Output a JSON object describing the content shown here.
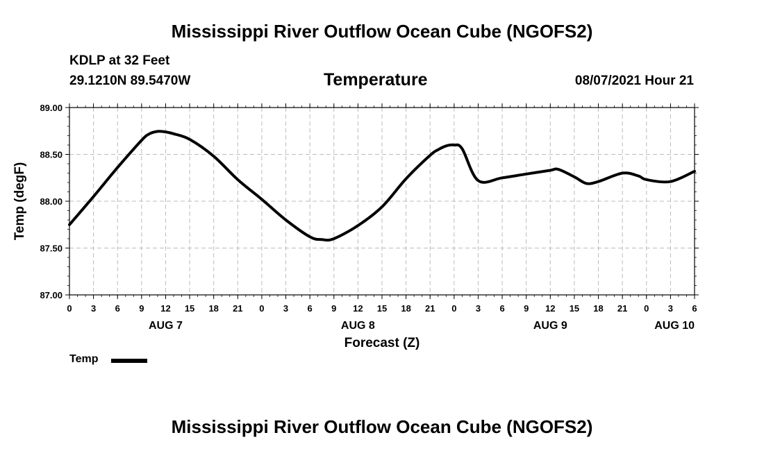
{
  "header": {
    "title": "Mississippi River Outflow Ocean Cube (NGOFS2)",
    "station": "KDLP at 32 Feet",
    "coords": "29.1210N  89.5470W",
    "variable": "Temperature",
    "datetime": "08/07/2021 Hour 21"
  },
  "footer": {
    "title": "Mississippi River Outflow Ocean Cube (NGOFS2)"
  },
  "legend": {
    "label": "Temp",
    "color": "#000000"
  },
  "chart_data": {
    "type": "line",
    "title": "Temperature",
    "xlabel": "Forecast (Z)",
    "ylabel": "Temp (degF)",
    "ylim": [
      87.0,
      89.0
    ],
    "xlim": [
      0,
      78
    ],
    "y_ticks": [
      "87.00",
      "87.50",
      "88.00",
      "88.50",
      "89.00"
    ],
    "y_tick_values": [
      87.0,
      87.5,
      88.0,
      88.5,
      89.0
    ],
    "x_tick_labels": [
      "0",
      "3",
      "6",
      "9",
      "12",
      "15",
      "18",
      "21",
      "0",
      "3",
      "6",
      "9",
      "12",
      "15",
      "18",
      "21",
      "0",
      "3",
      "6",
      "9",
      "12",
      "15",
      "18",
      "21",
      "0",
      "3",
      "6"
    ],
    "x_tick_hours": [
      0,
      3,
      6,
      9,
      12,
      15,
      18,
      21,
      24,
      27,
      30,
      33,
      36,
      39,
      42,
      45,
      48,
      51,
      54,
      57,
      60,
      63,
      66,
      69,
      72,
      75,
      78
    ],
    "date_labels": [
      {
        "text": "AUG 7",
        "hour": 12
      },
      {
        "text": "AUG 8",
        "hour": 36
      },
      {
        "text": "AUG 9",
        "hour": 60
      },
      {
        "text": "AUG 10",
        "hour": 75.5
      }
    ],
    "grid": true,
    "legend_position": "bottom-left",
    "series": [
      {
        "name": "Temp",
        "color": "#000000",
        "x": [
          0,
          3,
          6,
          9,
          10,
          11,
          12,
          13,
          15,
          18,
          21,
          24,
          27,
          30,
          31.5,
          33,
          36,
          39,
          42,
          45,
          46,
          47,
          48,
          49,
          51,
          54,
          57,
          60,
          61,
          63,
          64.5,
          66,
          69,
          71,
          72,
          75,
          78
        ],
        "y": [
          87.75,
          88.05,
          88.36,
          88.65,
          88.72,
          88.745,
          88.74,
          88.72,
          88.66,
          88.48,
          88.23,
          88.02,
          87.8,
          87.62,
          87.59,
          87.6,
          87.74,
          87.94,
          88.24,
          88.49,
          88.55,
          88.59,
          88.6,
          88.56,
          88.22,
          88.25,
          88.29,
          88.33,
          88.34,
          88.26,
          88.19,
          88.21,
          88.3,
          88.27,
          88.23,
          88.21,
          88.32
        ]
      }
    ]
  }
}
